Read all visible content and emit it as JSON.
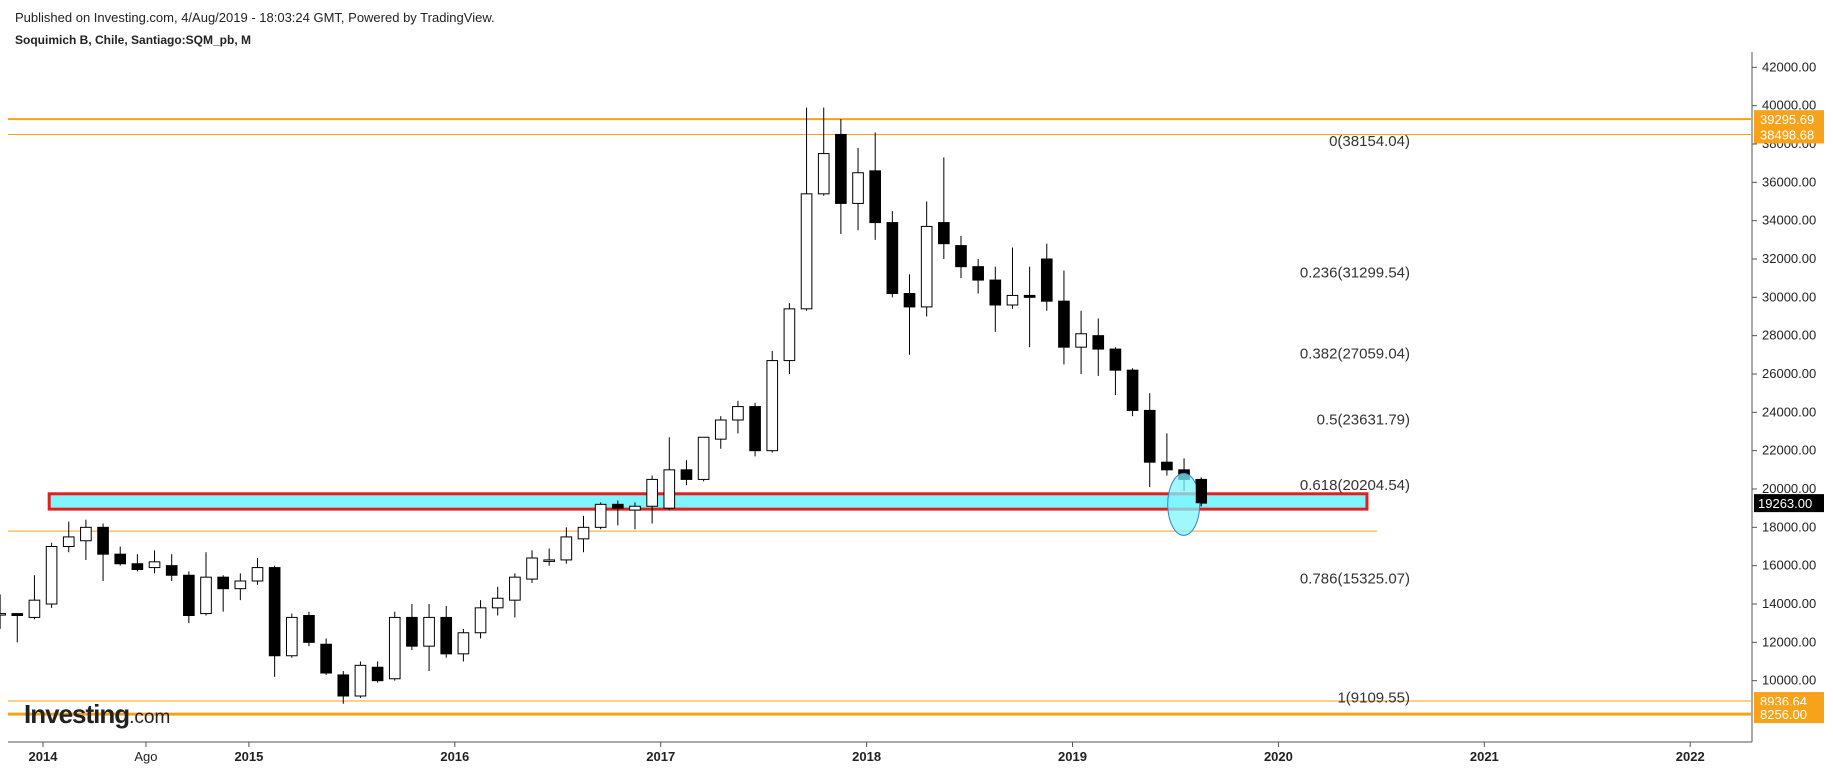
{
  "header": {
    "published": "Published on Investing.com, 4/Aug/2019 - 18:03:24 GMT, Powered by TradingView.",
    "symbol": "Soquimich B, Chile, Santiago:SQM_pb, M"
  },
  "logo": {
    "name": "Investing",
    "suffix": ".com"
  },
  "colors": {
    "up_fill": "#ffffff",
    "down_fill": "#000000",
    "candle_stroke": "#000000",
    "line_orange": "#f7a21b",
    "zone_fill": "#7ff5ff",
    "zone_border": "#e02020",
    "circle_fill": "#7ff5ff",
    "last_price_bg": "#000000"
  },
  "chart_data": {
    "type": "candlestick",
    "interval": "M",
    "ylim": [
      6800,
      42800
    ],
    "yticks": [
      "42000.00",
      "40000.00",
      "38000.00",
      "36000.00",
      "34000.00",
      "32000.00",
      "30000.00",
      "28000.00",
      "26000.00",
      "24000.00",
      "22000.00",
      "20000.00",
      "18000.00",
      "16000.00",
      "14000.00",
      "12000.00",
      "10000.00"
    ],
    "xlim": [
      2013.83,
      2022.3
    ],
    "xticks": [
      {
        "label": "2014",
        "x": 2014.0,
        "bold": true
      },
      {
        "label": "Ago",
        "x": 2014.5,
        "bold": false
      },
      {
        "label": "2015",
        "x": 2015.0,
        "bold": true
      },
      {
        "label": "2016",
        "x": 2016.0,
        "bold": true
      },
      {
        "label": "2017",
        "x": 2017.0,
        "bold": true
      },
      {
        "label": "2018",
        "x": 2018.0,
        "bold": true
      },
      {
        "label": "2019",
        "x": 2019.0,
        "bold": true
      },
      {
        "label": "2020",
        "x": 2020.0,
        "bold": true
      },
      {
        "label": "2021",
        "x": 2021.0,
        "bold": true
      },
      {
        "label": "2022",
        "x": 2022.0,
        "bold": true
      }
    ],
    "candles": [
      {
        "t": "2013-10",
        "o": 13500,
        "h": 14500,
        "l": 12700,
        "c": 13500
      },
      {
        "t": "2013-11",
        "o": 13500,
        "h": 13500,
        "l": 12000,
        "c": 13400
      },
      {
        "t": "2013-12",
        "o": 13300,
        "h": 15500,
        "l": 13200,
        "c": 14200
      },
      {
        "t": "2014-01",
        "o": 14000,
        "h": 17200,
        "l": 13800,
        "c": 17000
      },
      {
        "t": "2014-02",
        "o": 17000,
        "h": 18300,
        "l": 16700,
        "c": 17500
      },
      {
        "t": "2014-03",
        "o": 17300,
        "h": 18400,
        "l": 16300,
        "c": 18000
      },
      {
        "t": "2014-04",
        "o": 18000,
        "h": 18200,
        "l": 15200,
        "c": 16600
      },
      {
        "t": "2014-05",
        "o": 16600,
        "h": 17000,
        "l": 16000,
        "c": 16100
      },
      {
        "t": "2014-06",
        "o": 16100,
        "h": 16600,
        "l": 15700,
        "c": 15800
      },
      {
        "t": "2014-07",
        "o": 15900,
        "h": 16800,
        "l": 15600,
        "c": 16200
      },
      {
        "t": "2014-08",
        "o": 16000,
        "h": 16600,
        "l": 15200,
        "c": 15500
      },
      {
        "t": "2014-09",
        "o": 15500,
        "h": 15700,
        "l": 13000,
        "c": 13400
      },
      {
        "t": "2014-10",
        "o": 13500,
        "h": 16700,
        "l": 13400,
        "c": 15400
      },
      {
        "t": "2014-11",
        "o": 15400,
        "h": 15500,
        "l": 13600,
        "c": 14800
      },
      {
        "t": "2014-12",
        "o": 14800,
        "h": 15600,
        "l": 14200,
        "c": 15200
      },
      {
        "t": "2015-01",
        "o": 15200,
        "h": 16400,
        "l": 15000,
        "c": 15900
      },
      {
        "t": "2015-02",
        "o": 15900,
        "h": 16000,
        "l": 10200,
        "c": 11300
      },
      {
        "t": "2015-03",
        "o": 11300,
        "h": 13500,
        "l": 11200,
        "c": 13300
      },
      {
        "t": "2015-04",
        "o": 13400,
        "h": 13600,
        "l": 11800,
        "c": 12000
      },
      {
        "t": "2015-05",
        "o": 11900,
        "h": 12200,
        "l": 10300,
        "c": 10400
      },
      {
        "t": "2015-06",
        "o": 10300,
        "h": 10500,
        "l": 8800,
        "c": 9200
      },
      {
        "t": "2015-07",
        "o": 9200,
        "h": 11000,
        "l": 9100,
        "c": 10800
      },
      {
        "t": "2015-08",
        "o": 10700,
        "h": 11000,
        "l": 9900,
        "c": 10000
      },
      {
        "t": "2015-09",
        "o": 10100,
        "h": 13600,
        "l": 10000,
        "c": 13300
      },
      {
        "t": "2015-10",
        "o": 13300,
        "h": 14000,
        "l": 11600,
        "c": 11800
      },
      {
        "t": "2015-11",
        "o": 11800,
        "h": 14000,
        "l": 10500,
        "c": 13300
      },
      {
        "t": "2015-12",
        "o": 13300,
        "h": 13900,
        "l": 11200,
        "c": 11400
      },
      {
        "t": "2016-01",
        "o": 11400,
        "h": 12700,
        "l": 11000,
        "c": 12500
      },
      {
        "t": "2016-02",
        "o": 12500,
        "h": 14200,
        "l": 12200,
        "c": 13800
      },
      {
        "t": "2016-03",
        "o": 13800,
        "h": 14900,
        "l": 13400,
        "c": 14300
      },
      {
        "t": "2016-04",
        "o": 14200,
        "h": 15600,
        "l": 13300,
        "c": 15400
      },
      {
        "t": "2016-05",
        "o": 15300,
        "h": 16800,
        "l": 15100,
        "c": 16400
      },
      {
        "t": "2016-06",
        "o": 16300,
        "h": 16900,
        "l": 16000,
        "c": 16300
      },
      {
        "t": "2016-07",
        "o": 16300,
        "h": 18000,
        "l": 16100,
        "c": 17500
      },
      {
        "t": "2016-08",
        "o": 17400,
        "h": 18600,
        "l": 16700,
        "c": 18000
      },
      {
        "t": "2016-09",
        "o": 18000,
        "h": 19300,
        "l": 17900,
        "c": 19200
      },
      {
        "t": "2016-10",
        "o": 19200,
        "h": 19400,
        "l": 18100,
        "c": 19000
      },
      {
        "t": "2016-11",
        "o": 18900,
        "h": 19300,
        "l": 17900,
        "c": 19100
      },
      {
        "t": "2016-12",
        "o": 19100,
        "h": 20700,
        "l": 18200,
        "c": 20500
      },
      {
        "t": "2017-01",
        "o": 19000,
        "h": 22700,
        "l": 18900,
        "c": 21000
      },
      {
        "t": "2017-02",
        "o": 21000,
        "h": 21500,
        "l": 20200,
        "c": 20500
      },
      {
        "t": "2017-03",
        "o": 20500,
        "h": 22700,
        "l": 20400,
        "c": 22700
      },
      {
        "t": "2017-04",
        "o": 22600,
        "h": 23800,
        "l": 22100,
        "c": 23600
      },
      {
        "t": "2017-05",
        "o": 23600,
        "h": 24600,
        "l": 22900,
        "c": 24300
      },
      {
        "t": "2017-06",
        "o": 24300,
        "h": 24500,
        "l": 21700,
        "c": 22000
      },
      {
        "t": "2017-07",
        "o": 22000,
        "h": 27200,
        "l": 21900,
        "c": 26700
      },
      {
        "t": "2017-08",
        "o": 26700,
        "h": 29700,
        "l": 26000,
        "c": 29400
      },
      {
        "t": "2017-09",
        "o": 29400,
        "h": 39900,
        "l": 29300,
        "c": 35400
      },
      {
        "t": "2017-10",
        "o": 35400,
        "h": 39900,
        "l": 35300,
        "c": 37500
      },
      {
        "t": "2017-11",
        "o": 38500,
        "h": 39300,
        "l": 33300,
        "c": 34900
      },
      {
        "t": "2017-12",
        "o": 34900,
        "h": 37800,
        "l": 33500,
        "c": 36500
      },
      {
        "t": "2018-01",
        "o": 36600,
        "h": 38600,
        "l": 33000,
        "c": 33900
      },
      {
        "t": "2018-02",
        "o": 33900,
        "h": 34500,
        "l": 30000,
        "c": 30200
      },
      {
        "t": "2018-03",
        "o": 30200,
        "h": 31200,
        "l": 27000,
        "c": 29500
      },
      {
        "t": "2018-04",
        "o": 29500,
        "h": 35000,
        "l": 29000,
        "c": 33700
      },
      {
        "t": "2018-05",
        "o": 33900,
        "h": 37300,
        "l": 32000,
        "c": 32800
      },
      {
        "t": "2018-06",
        "o": 32700,
        "h": 33200,
        "l": 31000,
        "c": 31600
      },
      {
        "t": "2018-07",
        "o": 31600,
        "h": 32000,
        "l": 30200,
        "c": 30900
      },
      {
        "t": "2018-08",
        "o": 30900,
        "h": 31600,
        "l": 28200,
        "c": 29600
      },
      {
        "t": "2018-09",
        "o": 29600,
        "h": 32600,
        "l": 29400,
        "c": 30100
      },
      {
        "t": "2018-10",
        "o": 30100,
        "h": 31600,
        "l": 27400,
        "c": 30000
      },
      {
        "t": "2018-11",
        "o": 32000,
        "h": 32800,
        "l": 29300,
        "c": 29800
      },
      {
        "t": "2018-12",
        "o": 29800,
        "h": 31400,
        "l": 26500,
        "c": 27400
      },
      {
        "t": "2019-01",
        "o": 27400,
        "h": 29300,
        "l": 26000,
        "c": 28100
      },
      {
        "t": "2019-02",
        "o": 28000,
        "h": 28900,
        "l": 25900,
        "c": 27300
      },
      {
        "t": "2019-03",
        "o": 27300,
        "h": 27400,
        "l": 24900,
        "c": 26200
      },
      {
        "t": "2019-04",
        "o": 26200,
        "h": 26300,
        "l": 23800,
        "c": 24100
      },
      {
        "t": "2019-05",
        "o": 24100,
        "h": 25000,
        "l": 20100,
        "c": 21400
      },
      {
        "t": "2019-06",
        "o": 21400,
        "h": 22900,
        "l": 20700,
        "c": 21000
      },
      {
        "t": "2019-07",
        "o": 21000,
        "h": 21600,
        "l": 19900,
        "c": 20500
      },
      {
        "t": "2019-08",
        "o": 20500,
        "h": 20600,
        "l": 19100,
        "c": 19263
      }
    ],
    "horizontal_lines": [
      {
        "value": 39295.69,
        "label": "39295.69",
        "color": "#f7a21b",
        "width": 2
      },
      {
        "value": 38498.68,
        "label": "38498.68",
        "color": "#f7a21b",
        "width": 1
      },
      {
        "value": 8936.64,
        "label": "8936.64",
        "color": "#f7a21b",
        "width": 1
      },
      {
        "value": 8256.0,
        "label": "8256.00",
        "color": "#f7a21b",
        "width": 3
      }
    ],
    "support_line": {
      "value": 17800,
      "color": "#f7a21b"
    },
    "last_price": {
      "value": 19263,
      "label": "19263.00"
    },
    "fib_levels": [
      {
        "label": "0(38154.04)",
        "value": 38154.04
      },
      {
        "label": "0.236(31299.54)",
        "value": 31299.54
      },
      {
        "label": "0.382(27059.04)",
        "value": 27059.04
      },
      {
        "label": "0.5(23631.79)",
        "value": 23631.79
      },
      {
        "label": "0.618(20204.54)",
        "value": 20204.54
      },
      {
        "label": "0.786(15325.07)",
        "value": 15325.07
      },
      {
        "label": "1(9109.55)",
        "value": 9109.55
      }
    ],
    "zone": {
      "x0": 2014.03,
      "x1": 2020.43,
      "y0": 18950,
      "y1": 19750
    },
    "highlight_circle": {
      "x": 2019.54,
      "y": 19200
    }
  }
}
